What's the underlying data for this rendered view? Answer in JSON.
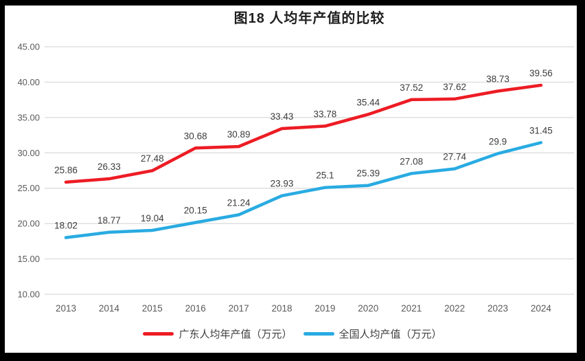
{
  "chart_data": {
    "type": "line",
    "title": "图18 人均年产值的比较",
    "categories": [
      "2013",
      "2014",
      "2015",
      "2016",
      "2017",
      "2018",
      "2019",
      "2020",
      "2021",
      "2022",
      "2023",
      "2024"
    ],
    "series": [
      {
        "name": "广东人均年产值（万元）",
        "color": "#ED1C24",
        "values": [
          25.86,
          26.33,
          27.48,
          30.68,
          30.89,
          33.43,
          33.78,
          35.44,
          37.52,
          37.62,
          38.73,
          39.56
        ]
      },
      {
        "name": "全国人均产值（万元）",
        "color": "#29ABE2",
        "values": [
          18.02,
          18.77,
          19.04,
          20.15,
          21.24,
          23.93,
          25.1,
          25.39,
          27.08,
          27.74,
          29.9,
          31.45
        ]
      }
    ],
    "ylim": [
      10,
      45
    ],
    "yticks": [
      {
        "value": 45,
        "label": "45.00"
      },
      {
        "value": 40,
        "label": "40.00"
      },
      {
        "value": 35,
        "label": "35.00"
      },
      {
        "value": 30,
        "label": "30.00"
      },
      {
        "value": 25,
        "label": "25.00"
      },
      {
        "value": 20,
        "label": "20.00"
      },
      {
        "value": 15,
        "label": "15.00"
      },
      {
        "value": 10,
        "label": "10.00"
      }
    ],
    "grid": true,
    "data_labels": true,
    "legend_position": "bottom",
    "xlabel": "",
    "ylabel": "",
    "colors": {
      "grid": "#D9D9D9",
      "axis_text": "#595959",
      "data_label": "#3B3B3B",
      "title": "#1F1F1F",
      "legend_text": "#3F3F3F",
      "frame": "#000000",
      "panel": "#FFFFFF"
    }
  }
}
